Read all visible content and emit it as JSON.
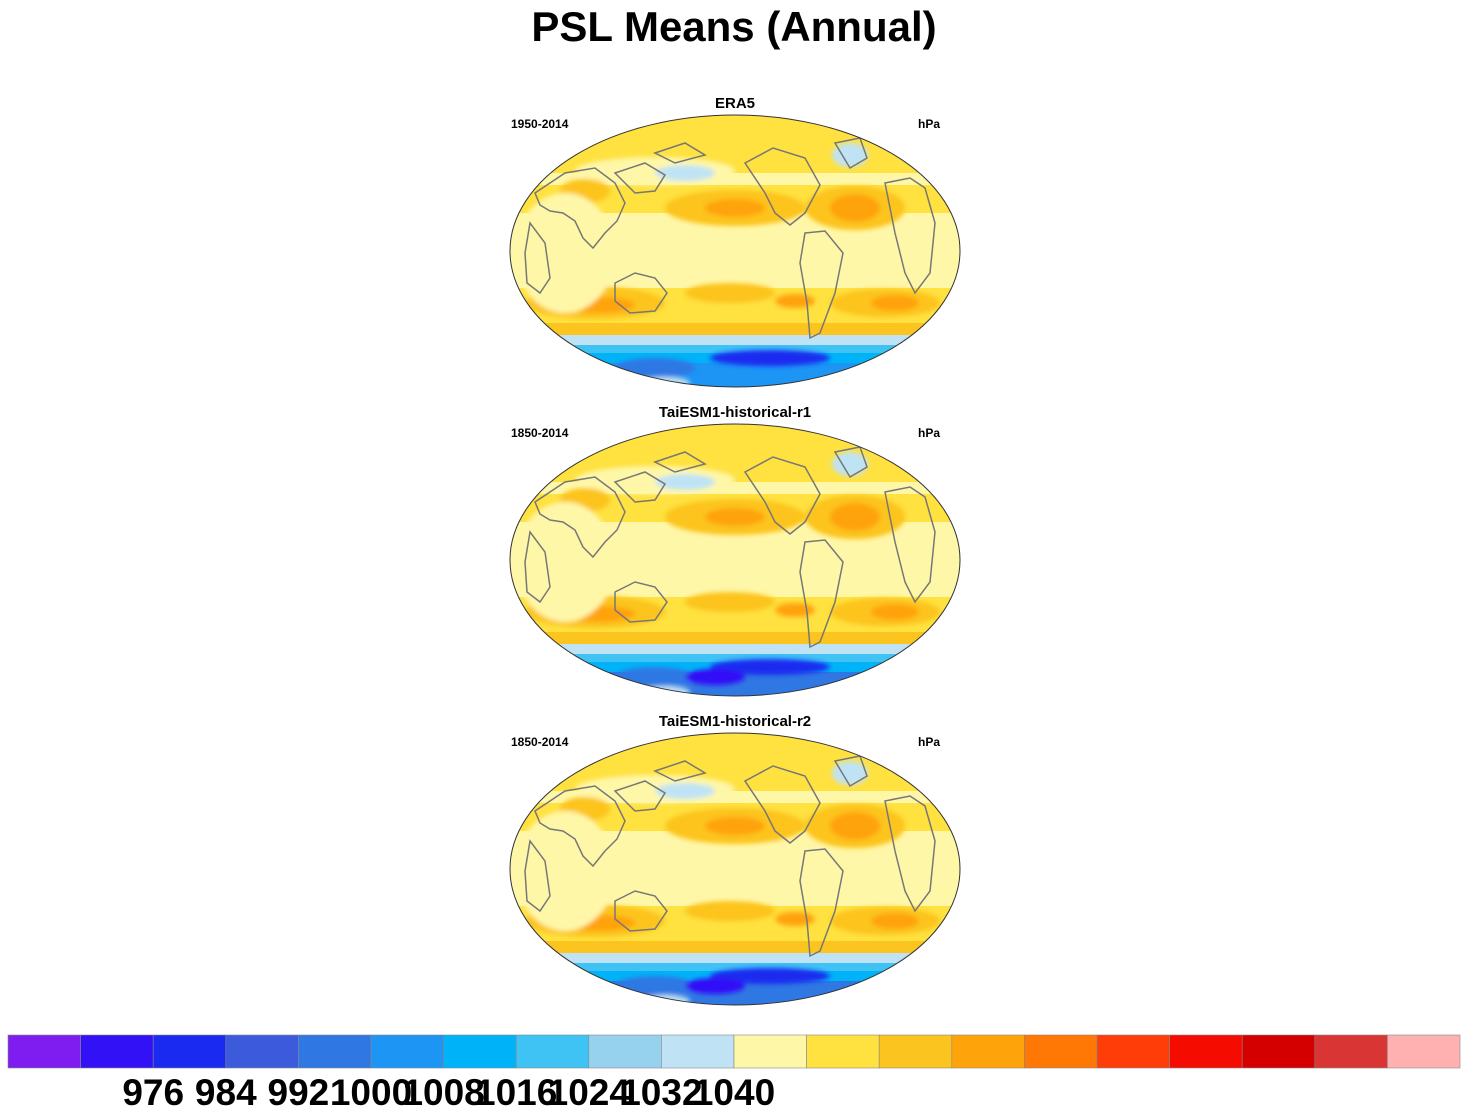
{
  "title": "PSL Means (Annual)",
  "panels": [
    {
      "name": "ERA5",
      "period": "1950-2014",
      "units": "hPa"
    },
    {
      "name": "TaiESM1-historical-r1",
      "period": "1850-2014",
      "units": "hPa"
    },
    {
      "name": "TaiESM1-historical-r2",
      "period": "1850-2014",
      "units": "hPa"
    }
  ],
  "chart_data": {
    "type": "heatmap",
    "title": "PSL Means (Annual)",
    "projection": "robinson",
    "units": "hPa",
    "colorbar": {
      "colors": [
        "#7f1df0",
        "#3311f7",
        "#1a2af0",
        "#3b5bdc",
        "#2f78e4",
        "#1c95f5",
        "#00b3f8",
        "#3fc3f5",
        "#96d1ee",
        "#bfe3f5",
        "#fff7a8",
        "#ffe140",
        "#fcc41f",
        "#ffa30b",
        "#ff7705",
        "#ff3d08",
        "#f50b00",
        "#d40000",
        "#d93535",
        "#ffb0b0"
      ],
      "tick_labels": [
        "976",
        "984",
        "992",
        "1000",
        "1008",
        "1016",
        "1024",
        "1032",
        "1040"
      ],
      "tick_values": [
        976,
        984,
        992,
        1000,
        1008,
        1016,
        1024,
        1032,
        1040
      ]
    },
    "maps": [
      {
        "label": "ERA5",
        "period": "1950-2014"
      },
      {
        "label": "TaiESM1-historical-r1",
        "period": "1850-2014"
      },
      {
        "label": "TaiESM1-historical-r2",
        "period": "1850-2014"
      }
    ]
  }
}
